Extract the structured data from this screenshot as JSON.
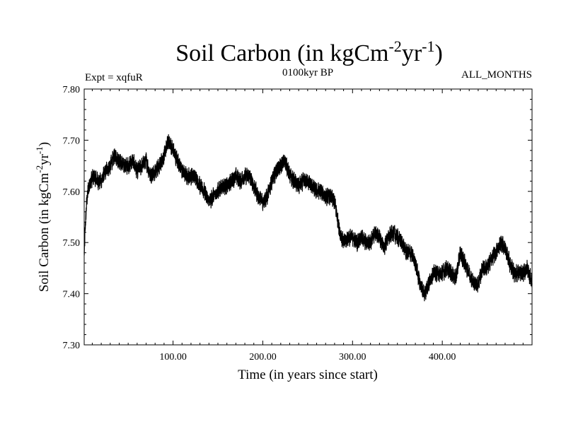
{
  "chart_data": {
    "type": "line",
    "title": "Soil Carbon (in kgCm",
    "title_exp1": "-2",
    "title_mid": "yr",
    "title_exp2": "-1",
    "title_close": ")",
    "subtitle_left": "Expt = xqfuR",
    "subtitle_center": "0100kyr BP",
    "subtitle_right": "ALL_MONTHS",
    "xlabel": "Time (in years since start)",
    "ylabel": "Soil Carbon (in kgCm",
    "ylabel_exp1": "-2",
    "ylabel_mid": "yr",
    "ylabel_exp2": "-1",
    "ylabel_close": ")",
    "xlim": [
      1,
      500
    ],
    "ylim": [
      7.3,
      7.8
    ],
    "x_ticks": [
      100,
      200,
      300,
      400
    ],
    "x_tick_labels": [
      "100.00",
      "200.00",
      "300.00",
      "400.00"
    ],
    "y_ticks": [
      7.3,
      7.4,
      7.5,
      7.6,
      7.7,
      7.8
    ],
    "y_tick_labels": [
      "7.30",
      "7.40",
      "7.50",
      "7.60",
      "7.70",
      "7.80"
    ],
    "line_color": "#000000",
    "series": [
      {
        "name": "Soil Carbon",
        "x": [
          1,
          3,
          5,
          8,
          12,
          16,
          20,
          25,
          30,
          35,
          40,
          45,
          50,
          55,
          60,
          65,
          70,
          75,
          80,
          85,
          90,
          95,
          100,
          105,
          110,
          115,
          120,
          125,
          130,
          135,
          140,
          145,
          150,
          155,
          160,
          165,
          170,
          175,
          180,
          185,
          190,
          195,
          200,
          205,
          210,
          215,
          220,
          225,
          230,
          235,
          240,
          245,
          250,
          255,
          260,
          265,
          270,
          275,
          280,
          283,
          286,
          290,
          295,
          300,
          305,
          310,
          315,
          320,
          325,
          330,
          335,
          340,
          345,
          350,
          355,
          360,
          365,
          370,
          375,
          380,
          385,
          390,
          395,
          400,
          405,
          410,
          415,
          420,
          425,
          430,
          435,
          440,
          445,
          450,
          455,
          460,
          465,
          470,
          475,
          480,
          485,
          490,
          495,
          500
        ],
        "values": [
          7.48,
          7.56,
          7.6,
          7.62,
          7.63,
          7.62,
          7.62,
          7.64,
          7.65,
          7.67,
          7.66,
          7.65,
          7.65,
          7.66,
          7.64,
          7.65,
          7.66,
          7.63,
          7.64,
          7.65,
          7.67,
          7.7,
          7.68,
          7.66,
          7.64,
          7.63,
          7.63,
          7.63,
          7.61,
          7.6,
          7.58,
          7.59,
          7.6,
          7.61,
          7.61,
          7.62,
          7.63,
          7.62,
          7.63,
          7.63,
          7.61,
          7.59,
          7.58,
          7.59,
          7.62,
          7.64,
          7.65,
          7.66,
          7.63,
          7.62,
          7.61,
          7.62,
          7.62,
          7.61,
          7.6,
          7.6,
          7.59,
          7.59,
          7.58,
          7.55,
          7.52,
          7.5,
          7.51,
          7.51,
          7.5,
          7.51,
          7.5,
          7.5,
          7.52,
          7.51,
          7.49,
          7.51,
          7.52,
          7.51,
          7.5,
          7.48,
          7.48,
          7.46,
          7.42,
          7.4,
          7.42,
          7.44,
          7.44,
          7.44,
          7.45,
          7.44,
          7.43,
          7.48,
          7.46,
          7.44,
          7.42,
          7.42,
          7.45,
          7.45,
          7.47,
          7.48,
          7.5,
          7.49,
          7.46,
          7.44,
          7.44,
          7.44,
          7.45,
          7.42
        ]
      }
    ]
  }
}
